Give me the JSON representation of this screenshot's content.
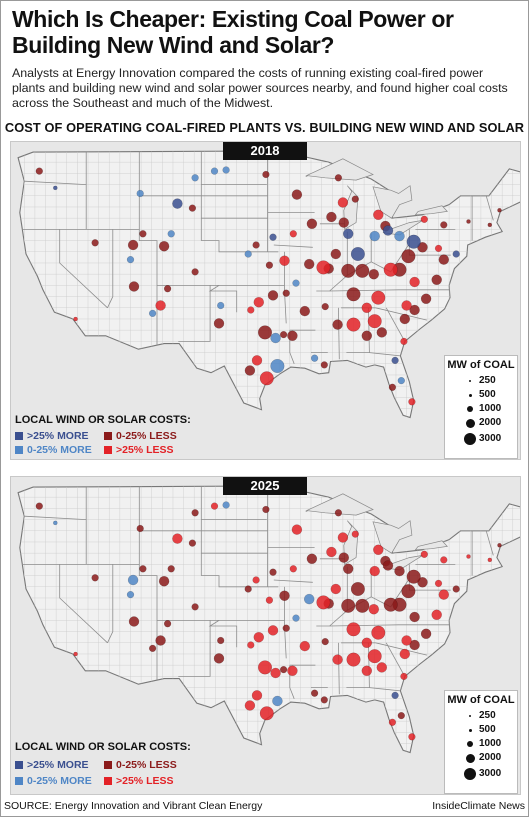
{
  "title": "Which Is Cheaper: Existing Coal Power or Building New Wind and Solar?",
  "intro": "Analysts at Energy Innovation compared the costs of running existing coal-fired power plants and building new wind and solar power sources nearby, and found higher coal costs across the Southeast and much of the Midwest.",
  "subtitle": "COST OF OPERATING COAL-FIRED PLANTS VS. BUILDING NEW WIND AND SOLAR",
  "colors": {
    "more25": "#3a4f8f",
    "more0_25": "#4f86c6",
    "less0_25": "#8b1a1a",
    "less25": "#e32227"
  },
  "legend": {
    "title": "LOCAL WIND OR SOLAR COSTS:",
    "items": [
      {
        "key": "more25",
        "label": ">25% MORE"
      },
      {
        "key": "more0_25",
        "label": "0-25% MORE"
      },
      {
        "key": "less0_25",
        "label": "0-25% LESS"
      },
      {
        "key": "less25",
        "label": ">25% LESS"
      }
    ]
  },
  "size_legend": {
    "title": "MW of COAL",
    "items": [
      "250",
      "500",
      "1000",
      "2000",
      "3000"
    ]
  },
  "maps": [
    {
      "year": "2018",
      "plants": [
        [
          "less25",
          -118.2,
          34.0,
          1
        ],
        [
          "less0_25",
          -122.3,
          47.2,
          2
        ],
        [
          "more25",
          -120.5,
          45.7,
          1
        ],
        [
          "more25",
          -106.7,
          44.3,
          3
        ],
        [
          "more0_25",
          -104.7,
          46.6,
          2
        ],
        [
          "more0_25",
          -102.5,
          47.2,
          2
        ],
        [
          "more0_25",
          -101.2,
          47.3,
          2
        ],
        [
          "less0_25",
          -96.7,
          46.9,
          2
        ],
        [
          "less0_25",
          -93.2,
          45.1,
          3
        ],
        [
          "more0_25",
          -110.9,
          45.2,
          2
        ],
        [
          "less0_25",
          -105.0,
          43.9,
          2
        ],
        [
          "less0_25",
          -111.7,
          40.6,
          3
        ],
        [
          "more0_25",
          -112.0,
          39.3,
          2
        ],
        [
          "less0_25",
          -110.6,
          41.6,
          2
        ],
        [
          "more0_25",
          -107.4,
          41.6,
          2
        ],
        [
          "less0_25",
          -108.2,
          40.5,
          3
        ],
        [
          "less0_25",
          -104.7,
          38.2,
          2
        ],
        [
          "less0_25",
          -107.8,
          36.7,
          2
        ],
        [
          "less25",
          -108.6,
          35.2,
          3
        ],
        [
          "more0_25",
          -109.5,
          34.5,
          2
        ],
        [
          "less0_25",
          -111.6,
          36.9,
          3
        ],
        [
          "less0_25",
          -116.0,
          40.8,
          2
        ],
        [
          "more25",
          -95.9,
          41.3,
          2
        ],
        [
          "less0_25",
          -97.8,
          40.6,
          2
        ],
        [
          "less25",
          -94.6,
          39.2,
          3
        ],
        [
          "less0_25",
          -96.3,
          38.8,
          2
        ],
        [
          "more0_25",
          -98.7,
          39.8,
          2
        ],
        [
          "less25",
          -93.6,
          41.6,
          2
        ],
        [
          "less0_25",
          -91.5,
          42.5,
          3
        ],
        [
          "less0_25",
          -89.3,
          43.1,
          3
        ],
        [
          "less25",
          -88.0,
          44.4,
          3
        ],
        [
          "less0_25",
          -87.9,
          42.6,
          3
        ],
        [
          "less0_25",
          -88.5,
          46.6,
          2
        ],
        [
          "less0_25",
          -86.6,
          44.7,
          2
        ],
        [
          "less25",
          -84.0,
          43.3,
          3
        ],
        [
          "less0_25",
          -83.2,
          42.3,
          3
        ],
        [
          "more0_25",
          -84.4,
          41.4,
          3
        ],
        [
          "more25",
          -82.9,
          41.9,
          3
        ],
        [
          "more25",
          -87.4,
          41.6,
          3
        ],
        [
          "more25",
          -86.3,
          39.8,
          4
        ],
        [
          "less0_25",
          -87.4,
          38.3,
          4
        ],
        [
          "less0_25",
          -88.8,
          39.8,
          3
        ],
        [
          "less0_25",
          -89.6,
          38.5,
          3
        ],
        [
          "less25",
          -90.2,
          38.6,
          4
        ],
        [
          "less0_25",
          -91.8,
          38.9,
          3
        ],
        [
          "more0_25",
          -93.3,
          37.2,
          2
        ],
        [
          "less0_25",
          -94.4,
          36.3,
          2
        ],
        [
          "less0_25",
          -95.9,
          36.1,
          3
        ],
        [
          "less25",
          -97.5,
          35.5,
          3
        ],
        [
          "less25",
          -98.4,
          34.8,
          2
        ],
        [
          "more0_25",
          -101.8,
          35.2,
          2
        ],
        [
          "less0_25",
          -102.0,
          33.6,
          3
        ],
        [
          "less0_25",
          -96.8,
          32.8,
          4
        ],
        [
          "more0_25",
          -95.6,
          32.3,
          3
        ],
        [
          "less0_25",
          -94.7,
          32.6,
          2
        ],
        [
          "more0_25",
          -95.4,
          29.8,
          4
        ],
        [
          "less25",
          -96.6,
          28.7,
          4
        ],
        [
          "less0_25",
          -98.5,
          29.4,
          3
        ],
        [
          "less25",
          -97.7,
          30.3,
          3
        ],
        [
          "less0_25",
          -93.7,
          32.5,
          3
        ],
        [
          "more0_25",
          -91.2,
          30.5,
          2
        ],
        [
          "less0_25",
          -90.1,
          29.9,
          2
        ],
        [
          "less0_25",
          -92.3,
          34.7,
          3
        ],
        [
          "less0_25",
          -90.0,
          35.1,
          2
        ],
        [
          "less0_25",
          -88.6,
          33.5,
          3
        ],
        [
          "less25",
          -86.8,
          33.5,
          4
        ],
        [
          "less0_25",
          -85.3,
          32.5,
          3
        ],
        [
          "less25",
          -84.4,
          33.8,
          4
        ],
        [
          "less0_25",
          -83.6,
          32.8,
          3
        ],
        [
          "less25",
          -81.1,
          32.0,
          2
        ],
        [
          "less0_25",
          -81.0,
          34.0,
          3
        ],
        [
          "less0_25",
          -79.9,
          34.8,
          3
        ],
        [
          "less25",
          -80.8,
          35.2,
          3
        ],
        [
          "less0_25",
          -78.6,
          35.8,
          3
        ],
        [
          "less0_25",
          -77.4,
          37.5,
          3
        ],
        [
          "less25",
          -79.9,
          37.3,
          3
        ],
        [
          "less0_25",
          -81.6,
          38.4,
          4
        ],
        [
          "less0_25",
          -80.6,
          39.6,
          4
        ],
        [
          "less25",
          -82.6,
          38.4,
          4
        ],
        [
          "less0_25",
          -84.5,
          38.0,
          3
        ],
        [
          "less0_25",
          -85.8,
          38.3,
          4
        ],
        [
          "less0_25",
          -86.8,
          36.2,
          4
        ],
        [
          "less25",
          -84.0,
          35.9,
          4
        ],
        [
          "less25",
          -85.3,
          35.0,
          3
        ],
        [
          "more25",
          -82.1,
          30.3,
          2
        ],
        [
          "more0_25",
          -81.4,
          28.5,
          2
        ],
        [
          "less0_25",
          -82.4,
          27.9,
          2
        ],
        [
          "less25",
          -80.2,
          26.6,
          2
        ],
        [
          "less0_25",
          -79.0,
          40.4,
          3
        ],
        [
          "less25",
          -77.2,
          40.3,
          2
        ],
        [
          "more25",
          -80.0,
          40.9,
          4
        ],
        [
          "more0_25",
          -81.6,
          41.4,
          3
        ],
        [
          "less0_25",
          -76.6,
          39.3,
          3
        ],
        [
          "less0_25",
          -76.6,
          42.4,
          2
        ],
        [
          "less25",
          -78.8,
          42.9,
          2
        ],
        [
          "more25",
          -75.2,
          39.8,
          2
        ],
        [
          "less0_25",
          -73.8,
          42.7,
          1
        ],
        [
          "less0_25",
          -71.4,
          42.4,
          1
        ],
        [
          "less0_25",
          -70.3,
          43.7,
          1
        ]
      ]
    },
    {
      "year": "2025",
      "plants": [
        [
          "less25",
          -118.2,
          34.0,
          1
        ],
        [
          "less0_25",
          -122.3,
          47.2,
          2
        ],
        [
          "more0_25",
          -120.5,
          45.7,
          1
        ],
        [
          "less25",
          -106.7,
          44.3,
          3
        ],
        [
          "less0_25",
          -104.7,
          46.6,
          2
        ],
        [
          "less25",
          -102.5,
          47.2,
          2
        ],
        [
          "more0_25",
          -101.2,
          47.3,
          2
        ],
        [
          "less0_25",
          -96.7,
          46.9,
          2
        ],
        [
          "less25",
          -93.2,
          45.1,
          3
        ],
        [
          "less0_25",
          -110.9,
          45.2,
          2
        ],
        [
          "less0_25",
          -105.0,
          43.9,
          2
        ],
        [
          "more0_25",
          -111.7,
          40.6,
          3
        ],
        [
          "more0_25",
          -112.0,
          39.3,
          2
        ],
        [
          "less0_25",
          -110.6,
          41.6,
          2
        ],
        [
          "less0_25",
          -107.4,
          41.6,
          2
        ],
        [
          "less0_25",
          -108.2,
          40.5,
          3
        ],
        [
          "less0_25",
          -104.7,
          38.2,
          2
        ],
        [
          "less0_25",
          -107.8,
          36.7,
          2
        ],
        [
          "less0_25",
          -108.6,
          35.2,
          3
        ],
        [
          "less0_25",
          -109.5,
          34.5,
          2
        ],
        [
          "less0_25",
          -111.6,
          36.9,
          3
        ],
        [
          "less0_25",
          -116.0,
          40.8,
          2
        ],
        [
          "less0_25",
          -95.9,
          41.3,
          2
        ],
        [
          "less25",
          -97.8,
          40.6,
          2
        ],
        [
          "less0_25",
          -94.6,
          39.2,
          3
        ],
        [
          "less25",
          -96.3,
          38.8,
          2
        ],
        [
          "less0_25",
          -98.7,
          39.8,
          2
        ],
        [
          "less25",
          -93.6,
          41.6,
          2
        ],
        [
          "less0_25",
          -91.5,
          42.5,
          3
        ],
        [
          "less25",
          -89.3,
          43.1,
          3
        ],
        [
          "less25",
          -88.0,
          44.4,
          3
        ],
        [
          "less0_25",
          -87.9,
          42.6,
          3
        ],
        [
          "less0_25",
          -88.5,
          46.6,
          2
        ],
        [
          "less25",
          -86.6,
          44.7,
          2
        ],
        [
          "less25",
          -84.0,
          43.3,
          3
        ],
        [
          "less0_25",
          -83.2,
          42.3,
          3
        ],
        [
          "less25",
          -84.4,
          41.4,
          3
        ],
        [
          "less0_25",
          -82.9,
          41.9,
          3
        ],
        [
          "less0_25",
          -87.4,
          41.6,
          3
        ],
        [
          "less0_25",
          -86.3,
          39.8,
          4
        ],
        [
          "less0_25",
          -87.4,
          38.3,
          4
        ],
        [
          "less25",
          -88.8,
          39.8,
          3
        ],
        [
          "less0_25",
          -89.6,
          38.5,
          3
        ],
        [
          "less25",
          -90.2,
          38.6,
          4
        ],
        [
          "more0_25",
          -91.8,
          38.9,
          3
        ],
        [
          "more0_25",
          -93.3,
          37.2,
          2
        ],
        [
          "less0_25",
          -94.4,
          36.3,
          2
        ],
        [
          "less25",
          -95.9,
          36.1,
          3
        ],
        [
          "less25",
          -97.5,
          35.5,
          3
        ],
        [
          "less25",
          -98.4,
          34.8,
          2
        ],
        [
          "less0_25",
          -101.8,
          35.2,
          2
        ],
        [
          "less0_25",
          -102.0,
          33.6,
          3
        ],
        [
          "less25",
          -96.8,
          32.8,
          4
        ],
        [
          "less25",
          -95.6,
          32.3,
          3
        ],
        [
          "less0_25",
          -94.7,
          32.6,
          2
        ],
        [
          "more0_25",
          -95.4,
          29.8,
          3
        ],
        [
          "less25",
          -96.6,
          28.7,
          4
        ],
        [
          "less25",
          -98.5,
          29.4,
          3
        ],
        [
          "less25",
          -97.7,
          30.3,
          3
        ],
        [
          "less25",
          -93.7,
          32.5,
          3
        ],
        [
          "less0_25",
          -91.2,
          30.5,
          2
        ],
        [
          "less0_25",
          -90.1,
          29.9,
          2
        ],
        [
          "less25",
          -92.3,
          34.7,
          3
        ],
        [
          "less0_25",
          -90.0,
          35.1,
          2
        ],
        [
          "less25",
          -88.6,
          33.5,
          3
        ],
        [
          "less25",
          -86.8,
          33.5,
          4
        ],
        [
          "less25",
          -85.3,
          32.5,
          3
        ],
        [
          "less25",
          -84.4,
          33.8,
          4
        ],
        [
          "less25",
          -83.6,
          32.8,
          3
        ],
        [
          "less25",
          -81.1,
          32.0,
          2
        ],
        [
          "less25",
          -81.0,
          34.0,
          3
        ],
        [
          "less0_25",
          -79.9,
          34.8,
          3
        ],
        [
          "less25",
          -80.8,
          35.2,
          3
        ],
        [
          "less0_25",
          -78.6,
          35.8,
          3
        ],
        [
          "less25",
          -77.4,
          37.5,
          3
        ],
        [
          "less0_25",
          -79.9,
          37.3,
          3
        ],
        [
          "less0_25",
          -81.6,
          38.4,
          4
        ],
        [
          "less0_25",
          -80.6,
          39.6,
          4
        ],
        [
          "less0_25",
          -82.6,
          38.4,
          4
        ],
        [
          "less25",
          -84.5,
          38.0,
          3
        ],
        [
          "less0_25",
          -85.8,
          38.3,
          4
        ],
        [
          "less25",
          -86.8,
          36.2,
          4
        ],
        [
          "less25",
          -84.0,
          35.9,
          4
        ],
        [
          "less25",
          -85.3,
          35.0,
          3
        ],
        [
          "more25",
          -82.1,
          30.3,
          2
        ],
        [
          "less0_25",
          -81.4,
          28.5,
          2
        ],
        [
          "less25",
          -82.4,
          27.9,
          2
        ],
        [
          "less25",
          -80.2,
          26.6,
          2
        ],
        [
          "less0_25",
          -79.0,
          40.4,
          3
        ],
        [
          "less25",
          -77.2,
          40.3,
          2
        ],
        [
          "less0_25",
          -80.0,
          40.9,
          4
        ],
        [
          "less0_25",
          -81.6,
          41.4,
          3
        ],
        [
          "less25",
          -76.6,
          39.3,
          3
        ],
        [
          "less25",
          -76.6,
          42.4,
          2
        ],
        [
          "less25",
          -78.8,
          42.9,
          2
        ],
        [
          "less0_25",
          -75.2,
          39.8,
          2
        ],
        [
          "less25",
          -73.8,
          42.7,
          1
        ],
        [
          "less25",
          -71.4,
          42.4,
          1
        ],
        [
          "less0_25",
          -70.3,
          43.7,
          1
        ]
      ]
    }
  ],
  "footer": {
    "source": "SOURCE: Energy Innovation and Vibrant Clean Energy",
    "credit": "InsideClimate News"
  }
}
